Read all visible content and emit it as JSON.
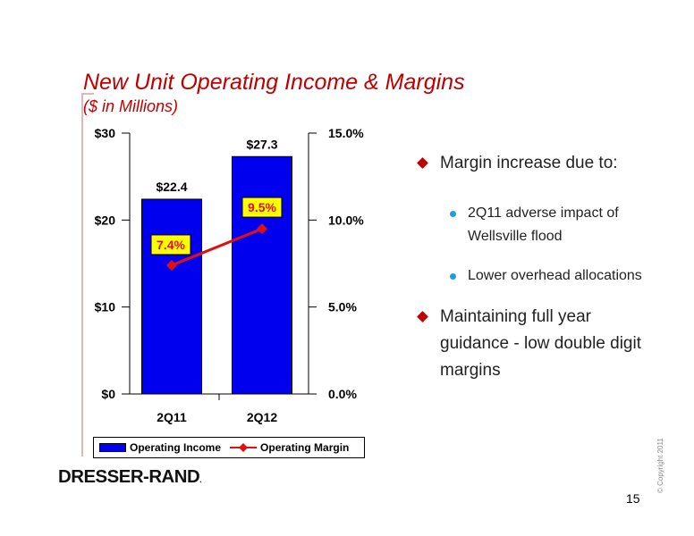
{
  "title": "New Unit Operating Income & Margins",
  "subtitle": "($ in Millions)",
  "chart_data": {
    "type": "bar",
    "categories": [
      "2Q11",
      "2Q12"
    ],
    "series": [
      {
        "name": "Operating Income",
        "type": "bar",
        "axis": "left",
        "values": [
          22.4,
          27.3
        ],
        "labels": [
          "$22.4",
          "$27.3"
        ],
        "color": "#0000ee"
      },
      {
        "name": "Operating Margin",
        "type": "line",
        "axis": "right",
        "values": [
          7.4,
          9.5
        ],
        "labels": [
          "7.4%",
          "9.5%"
        ],
        "color": "#e01010"
      }
    ],
    "y_left": {
      "ylim": [
        0,
        30
      ],
      "ticks": [
        "$0",
        "$10",
        "$20",
        "$30"
      ]
    },
    "y_right": {
      "ylim": [
        0,
        15
      ],
      "ticks": [
        "0.0%",
        "5.0%",
        "10.0%",
        "15.0%"
      ]
    },
    "grid": false,
    "legend_position": "bottom"
  },
  "legend": [
    "Operating Income",
    "Operating Margin"
  ],
  "bullets": {
    "main1": "Margin increase due to:",
    "sub1": "2Q11 adverse impact of Wellsville flood",
    "sub2": "Lower overhead allocations",
    "main2": "Maintaining full year guidance - low double digit margins"
  },
  "logo_text": "DRESSER-RAND",
  "logo_mark": ".",
  "copyright": "© Copyright 2011",
  "page_number": "15"
}
